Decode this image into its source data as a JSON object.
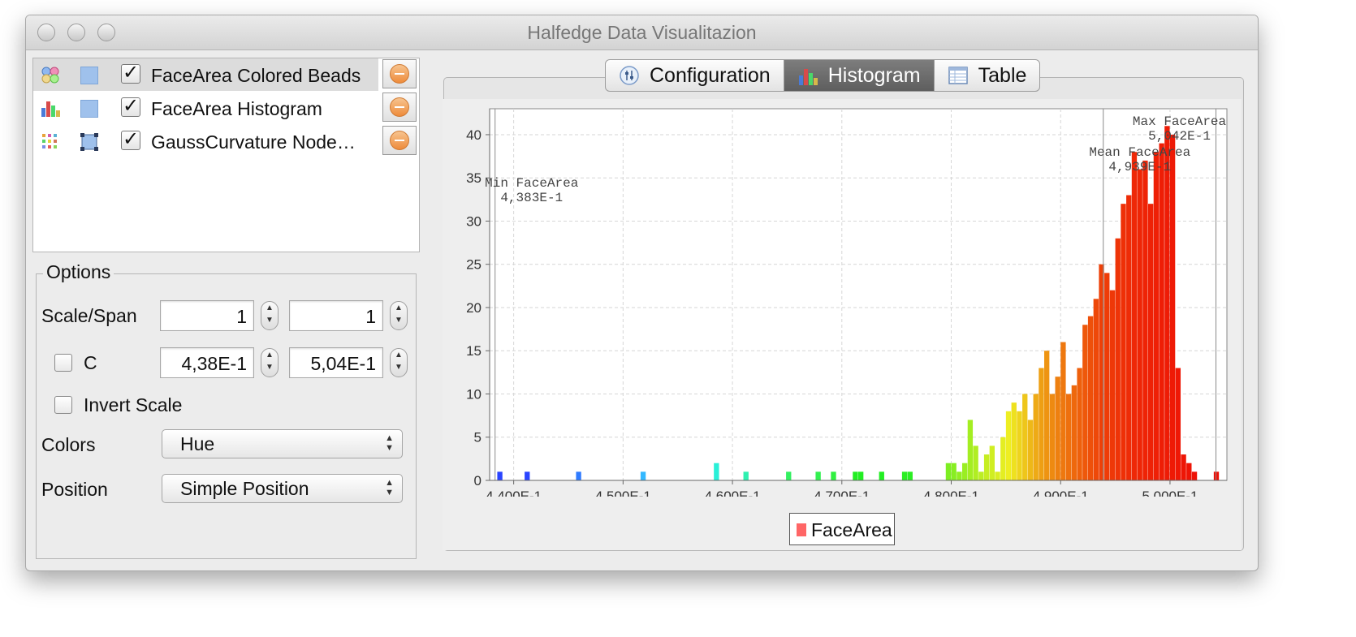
{
  "window": {
    "title": "Halfedge Data Visualitazion"
  },
  "layers": [
    {
      "label": "FaceArea Colored Beads",
      "checked": true,
      "selected": true,
      "type": "beads"
    },
    {
      "label": "FaceArea Histogram",
      "checked": true,
      "selected": false,
      "type": "histogram"
    },
    {
      "label": "GaussCurvature Node…",
      "checked": true,
      "selected": false,
      "type": "nodes"
    }
  ],
  "options": {
    "legend": "Options",
    "scale_span_label": "Scale/Span",
    "scale_value": "1",
    "span_value": "1",
    "clamp_label": "C",
    "clamp_checked": false,
    "clamp_min": "4,38E-1",
    "clamp_max": "5,04E-1",
    "invert_label": "Invert Scale",
    "invert_checked": false,
    "colors_label": "Colors",
    "colors_value": "Hue",
    "position_label": "Position",
    "position_value": "Simple Position"
  },
  "tabs": [
    {
      "label": "Configuration",
      "active": false,
      "icon": "configuration-icon"
    },
    {
      "label": "Histogram",
      "active": true,
      "icon": "histogram-icon"
    },
    {
      "label": "Table",
      "active": false,
      "icon": "table-icon"
    }
  ],
  "chart_data": {
    "type": "bar",
    "title": "",
    "xlabel": "",
    "ylabel": "",
    "xlim": [
      0.4378,
      0.5052
    ],
    "ylim": [
      0,
      43
    ],
    "bin_width": 0.0005,
    "x_ticks": [
      0.44,
      0.45,
      0.46,
      0.47,
      0.48,
      0.49,
      0.5
    ],
    "x_tick_labels": [
      "4,400E-1",
      "4,500E-1",
      "4,600E-1",
      "4,700E-1",
      "4,800E-1",
      "4,900E-1",
      "5,000E-1"
    ],
    "y_ticks": [
      0,
      5,
      10,
      15,
      20,
      25,
      30,
      35,
      40
    ],
    "grid": true,
    "legend": [
      "FaceArea"
    ],
    "legend_position": "bottom-center",
    "series": [
      {
        "name": "FaceArea",
        "x": [
          0.4385,
          0.441,
          0.4457,
          0.4516,
          0.4583,
          0.461,
          0.4649,
          0.4676,
          0.469,
          0.471,
          0.4715,
          0.4734,
          0.4755,
          0.476,
          0.4795,
          0.48,
          0.4805,
          0.481,
          0.4815,
          0.482,
          0.4825,
          0.483,
          0.4835,
          0.484,
          0.4845,
          0.485,
          0.4855,
          0.486,
          0.4865,
          0.487,
          0.4875,
          0.488,
          0.4885,
          0.489,
          0.4895,
          0.49,
          0.4905,
          0.491,
          0.4915,
          0.492,
          0.4925,
          0.493,
          0.4935,
          0.494,
          0.4945,
          0.495,
          0.4955,
          0.496,
          0.4965,
          0.497,
          0.4975,
          0.498,
          0.4985,
          0.499,
          0.4995,
          0.5,
          0.5005,
          0.501,
          0.5015,
          0.502,
          0.504
        ],
        "values": [
          1,
          1,
          1,
          1,
          2,
          1,
          1,
          1,
          1,
          1,
          1,
          1,
          1,
          1,
          2,
          2,
          1,
          2,
          7,
          4,
          1,
          3,
          4,
          1,
          5,
          8,
          9,
          8,
          10,
          7,
          10,
          13,
          15,
          10,
          12,
          16,
          10,
          11,
          13,
          18,
          19,
          21,
          25,
          24,
          22,
          28,
          32,
          33,
          38,
          36,
          37,
          32,
          38,
          39,
          41,
          40,
          13,
          3,
          2,
          1,
          1
        ],
        "colors": [
          "#2a44ff",
          "#2a44ff",
          "#2f7bff",
          "#33b8ff",
          "#29f0d8",
          "#2ff0b0",
          "#33f060",
          "#33f050",
          "#30f040",
          "#22ee22",
          "#22ee22",
          "#22ee22",
          "#2aee22",
          "#2aee22",
          "#7dee22",
          "#88ee22",
          "#93ee22",
          "#9aee22",
          "#a4ee22",
          "#b0ee22",
          "#bcee22",
          "#c6ee22",
          "#d0ee22",
          "#daee22",
          "#e4ee22",
          "#eeee22",
          "#eee11f",
          "#eed41d",
          "#eec61b",
          "#eeb818",
          "#eeaa16",
          "#ee9f14",
          "#ee9412",
          "#ee8a11",
          "#ee8010",
          "#ee780f",
          "#ee700e",
          "#ee680d",
          "#ee600c",
          "#ee580b",
          "#ee500a",
          "#ee4809",
          "#ee4008",
          "#ee3c08",
          "#ee3808",
          "#ee3408",
          "#ee3007",
          "#ee2c07",
          "#ee2807",
          "#ee2606",
          "#ee2406",
          "#ee2206",
          "#ee2006",
          "#ee1e06",
          "#ee1c06",
          "#ee1a06",
          "#ee1806",
          "#ee1606",
          "#ee1406",
          "#ee1206",
          "#ee1006"
        ]
      }
    ],
    "annotations": [
      {
        "label": "Min FaceArea",
        "value_label": "4,383E-1",
        "x": 0.4383
      },
      {
        "label": "Mean FaceArea",
        "value_label": "4,939E-1",
        "x": 0.4939
      },
      {
        "label": "Max FaceArea",
        "value_label": "5,042E-1",
        "x": 0.5042
      }
    ]
  }
}
